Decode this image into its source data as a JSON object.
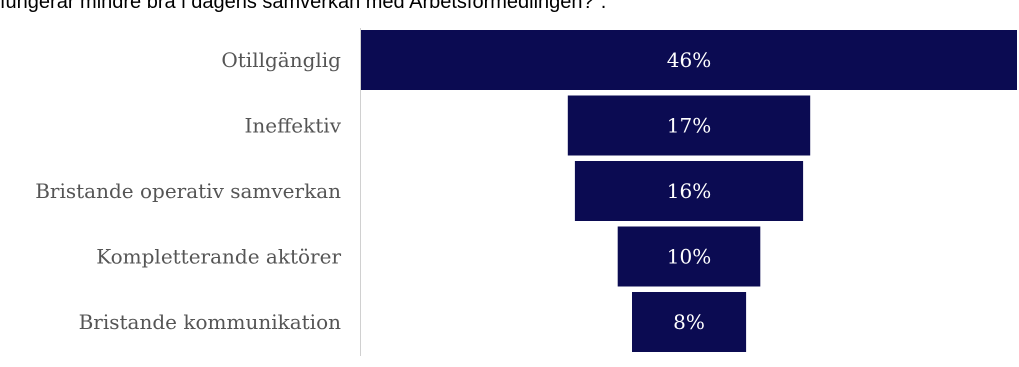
{
  "chart_data": {
    "type": "bar",
    "title": "fungerar mindre bra i dagens samverkan med Arbetsförmedlingen?\".",
    "categories": [
      "Otillgänglig",
      "Ineffektiv",
      "Bristande operativ samverkan",
      "Kompletterande aktörer",
      "Bristande kommunikation"
    ],
    "values": [
      46,
      17,
      16,
      10,
      8
    ],
    "value_labels": [
      "46%",
      "17%",
      "16%",
      "10%",
      "8%"
    ],
    "xlabel": "",
    "ylabel": "",
    "grid": false,
    "legend": "none",
    "style": "funnel",
    "colors": {
      "bar": "#0b0b52",
      "value_text": "#ffffff",
      "category_text": "#555555",
      "axis_line": "#d0d0d0",
      "title_text": "#000000"
    }
  }
}
